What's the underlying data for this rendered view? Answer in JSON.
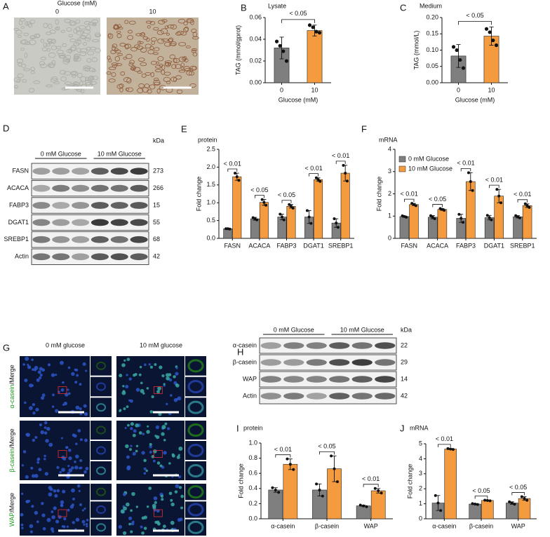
{
  "panels": {
    "A": {
      "letter": "A",
      "header": "Glucose (mM)",
      "columns": [
        "0",
        "10"
      ]
    },
    "D": {
      "letter": "D",
      "groups": [
        "0 mM Glucose",
        "10 mM Glucose"
      ],
      "unit": "kDa",
      "rows": [
        {
          "name": "FASN",
          "kda": "273"
        },
        {
          "name": "ACACA",
          "kda": "266"
        },
        {
          "name": "FABP3",
          "kda": "15"
        },
        {
          "name": "DGAT1",
          "kda": "55"
        },
        {
          "name": "SREBP1",
          "kda": "68"
        },
        {
          "name": "Actin",
          "kda": "42"
        }
      ]
    },
    "G": {
      "letter": "G",
      "columns": [
        "0 mM glucose",
        "10 mM glucose"
      ],
      "rows": [
        {
          "marker": "α-casein",
          "suffix": "/Merge"
        },
        {
          "marker": "β-casein",
          "suffix": "/Merge"
        },
        {
          "marker": "WAP",
          "suffix": "/Merge"
        }
      ]
    },
    "H": {
      "letter": "H",
      "groups": [
        "0 mM Glucose",
        "10 mM Glucose"
      ],
      "unit": "kDa",
      "rows": [
        {
          "name": "α-casein",
          "kda": "22"
        },
        {
          "name": "β-casein",
          "kda": "29"
        },
        {
          "name": "WAP",
          "kda": "14"
        },
        {
          "name": "Actin",
          "kda": "42"
        }
      ]
    }
  },
  "chart_data": [
    {
      "type": "bar",
      "letter": "B",
      "title": "Lysate",
      "ylabel": "TAG (mmol/gprot)",
      "xlabel": "Glucose (mM)",
      "categories": [
        "0",
        "10"
      ],
      "values": [
        0.032,
        0.048
      ],
      "errors": [
        0.01,
        0.005
      ],
      "points": [
        [
          0.038,
          0.034,
          0.029,
          0.02
        ],
        [
          0.053,
          0.051,
          0.047,
          0.046
        ]
      ],
      "colors": [
        "#7f7f7f",
        "#f49b3f"
      ],
      "annotation": "< 0.05",
      "ylim": [
        0,
        0.06
      ],
      "yticks": [
        {
          "value": 0,
          "label": "0.00"
        },
        {
          "value": 0.02,
          "label": "0.02"
        },
        {
          "value": 0.04,
          "label": "0.04"
        },
        {
          "value": 0.06,
          "label": "0.06"
        }
      ]
    },
    {
      "type": "bar",
      "letter": "C",
      "title": "Medium",
      "ylabel": "TAG (mmol/L)",
      "xlabel": "Glucose (mM)",
      "categories": [
        "0",
        "10"
      ],
      "values": [
        0.082,
        0.143
      ],
      "errors": [
        0.035,
        0.028
      ],
      "points": [
        [
          0.11,
          0.1,
          0.07,
          0.045
        ],
        [
          0.165,
          0.155,
          0.13,
          0.115
        ]
      ],
      "colors": [
        "#7f7f7f",
        "#f49b3f"
      ],
      "annotation": "< 0.05",
      "ylim": [
        0,
        0.2
      ],
      "yticks": [
        {
          "value": 0,
          "label": "0.00"
        },
        {
          "value": 0.05,
          "label": "0.05"
        },
        {
          "value": 0.1,
          "label": "0.10"
        },
        {
          "value": 0.15,
          "label": "0.15"
        },
        {
          "value": 0.2,
          "label": "0.20"
        }
      ]
    },
    {
      "type": "grouped_bar",
      "letter": "E",
      "subtitle": "protein",
      "ylabel": "Fold change",
      "categories": [
        "FASN",
        "ACACA",
        "FABP3",
        "DGAT1",
        "SREBP1"
      ],
      "series": [
        {
          "color": "#7f7f7f",
          "values": [
            0.27,
            0.55,
            0.6,
            0.6,
            0.43
          ],
          "errors": [
            0.01,
            0.04,
            0.08,
            0.18,
            0.12
          ],
          "points": [
            [
              0.27,
              0.27,
              0.26
            ],
            [
              0.58,
              0.55,
              0.52
            ],
            [
              0.68,
              0.6,
              0.52
            ],
            [
              0.78,
              0.6,
              0.42
            ],
            [
              0.55,
              0.43,
              0.31
            ]
          ]
        },
        {
          "color": "#f49b3f",
          "values": [
            1.73,
            1.01,
            0.9,
            1.65,
            1.83
          ],
          "errors": [
            0.1,
            0.08,
            0.05,
            0.05,
            0.22
          ],
          "points": [
            [
              1.83,
              1.73,
              1.63
            ],
            [
              1.09,
              1.01,
              0.93
            ],
            [
              0.95,
              0.9,
              0.85
            ],
            [
              1.7,
              1.65,
              1.6
            ],
            [
              2.05,
              1.83,
              1.61
            ]
          ]
        }
      ],
      "annotations": [
        "< 0.01",
        "< 0.05",
        "< 0.05",
        "< 0.01",
        "< 0.01"
      ],
      "ylim": [
        0,
        2.5
      ],
      "yticks": [
        {
          "value": 0,
          "label": "0.0"
        },
        {
          "value": 0.5,
          "label": "0.5"
        },
        {
          "value": 1,
          "label": "1.0"
        },
        {
          "value": 1.5,
          "label": "1.5"
        },
        {
          "value": 2,
          "label": "2.0"
        },
        {
          "value": 2.5,
          "label": "2.5"
        }
      ]
    },
    {
      "type": "grouped_bar",
      "letter": "F",
      "subtitle": "mRNA",
      "ylabel": "Fold change",
      "categories": [
        "FASN",
        "ACACA",
        "FABP3",
        "DGAT1",
        "SREBP1"
      ],
      "series": [
        {
          "name": "0 mM Glucose",
          "color": "#7f7f7f",
          "values": [
            0.98,
            0.95,
            0.9,
            0.93,
            0.97
          ],
          "errors": [
            0.03,
            0.07,
            0.18,
            0.1,
            0.05
          ],
          "points": [
            [
              1.01,
              0.98,
              0.95
            ],
            [
              1.02,
              0.95,
              0.88
            ],
            [
              1.08,
              0.9,
              0.72
            ],
            [
              1.03,
              0.93,
              0.83
            ],
            [
              1.02,
              0.97,
              0.92
            ]
          ]
        },
        {
          "name": "10 mM Glucose",
          "color": "#f49b3f",
          "values": [
            1.52,
            1.3,
            2.55,
            1.9,
            1.47
          ],
          "errors": [
            0.05,
            0.04,
            0.4,
            0.3,
            0.08
          ],
          "points": [
            [
              1.57,
              1.52,
              1.47
            ],
            [
              1.34,
              1.3,
              1.26
            ],
            [
              2.95,
              2.55,
              2.15
            ],
            [
              2.2,
              1.9,
              1.6
            ],
            [
              1.55,
              1.47,
              1.39
            ]
          ]
        }
      ],
      "annotations": [
        "< 0.01",
        "< 0.05",
        "< 0.01",
        "< 0.01",
        "< 0.01"
      ],
      "legend": true,
      "ylim": [
        0,
        4
      ],
      "yticks": [
        0,
        1,
        2,
        3,
        4
      ]
    },
    {
      "type": "grouped_bar",
      "letter": "I",
      "subtitle": "protein",
      "ylabel": "Fold change",
      "categories": [
        "α-casein",
        "β-casein",
        "WAP"
      ],
      "series": [
        {
          "color": "#7f7f7f",
          "values": [
            0.38,
            0.38,
            0.17
          ],
          "errors": [
            0.03,
            0.08,
            0.01
          ],
          "points": [
            [
              0.41,
              0.38,
              0.35
            ],
            [
              0.46,
              0.38,
              0.3
            ],
            [
              0.18,
              0.17,
              0.16
            ]
          ]
        },
        {
          "color": "#f49b3f",
          "values": [
            0.72,
            0.66,
            0.37
          ],
          "errors": [
            0.07,
            0.17,
            0.03
          ],
          "points": [
            [
              0.79,
              0.72,
              0.65
            ],
            [
              0.83,
              0.66,
              0.49
            ],
            [
              0.4,
              0.37,
              0.34
            ]
          ]
        }
      ],
      "annotations": [
        "< 0.01",
        "< 0.05",
        "< 0.01"
      ],
      "ylim": [
        0,
        1
      ],
      "yticks": [
        {
          "value": 0,
          "label": "0.0"
        },
        {
          "value": 0.2,
          "label": "0.2"
        },
        {
          "value": 0.4,
          "label": "0.4"
        },
        {
          "value": 0.6,
          "label": "0.6"
        },
        {
          "value": 0.8,
          "label": "0.8"
        },
        {
          "value": 1,
          "label": "1.0"
        }
      ]
    },
    {
      "type": "grouped_bar",
      "letter": "J",
      "subtitle": "mRNA",
      "ylabel": "Fold change",
      "categories": [
        "α-casein",
        "β-casein",
        "WAP"
      ],
      "series": [
        {
          "color": "#7f7f7f",
          "values": [
            1.05,
            0.98,
            1.05
          ],
          "errors": [
            0.5,
            0.03,
            0.08
          ],
          "points": [
            [
              1.55,
              1.05,
              0.55
            ],
            [
              1.01,
              0.98,
              0.95
            ],
            [
              1.13,
              1.05,
              0.97
            ]
          ]
        },
        {
          "color": "#f49b3f",
          "values": [
            4.65,
            1.22,
            1.35
          ],
          "errors": [
            0.03,
            0.02,
            0.12
          ],
          "points": [
            [
              4.68,
              4.65,
              4.62
            ],
            [
              1.24,
              1.22,
              1.2
            ],
            [
              1.47,
              1.35,
              1.23
            ]
          ]
        }
      ],
      "annotations": [
        "< 0.01",
        "< 0.05",
        "< 0.05"
      ],
      "ylim": [
        0,
        5
      ],
      "yticks": [
        0,
        1,
        2,
        3,
        4,
        5
      ]
    }
  ]
}
